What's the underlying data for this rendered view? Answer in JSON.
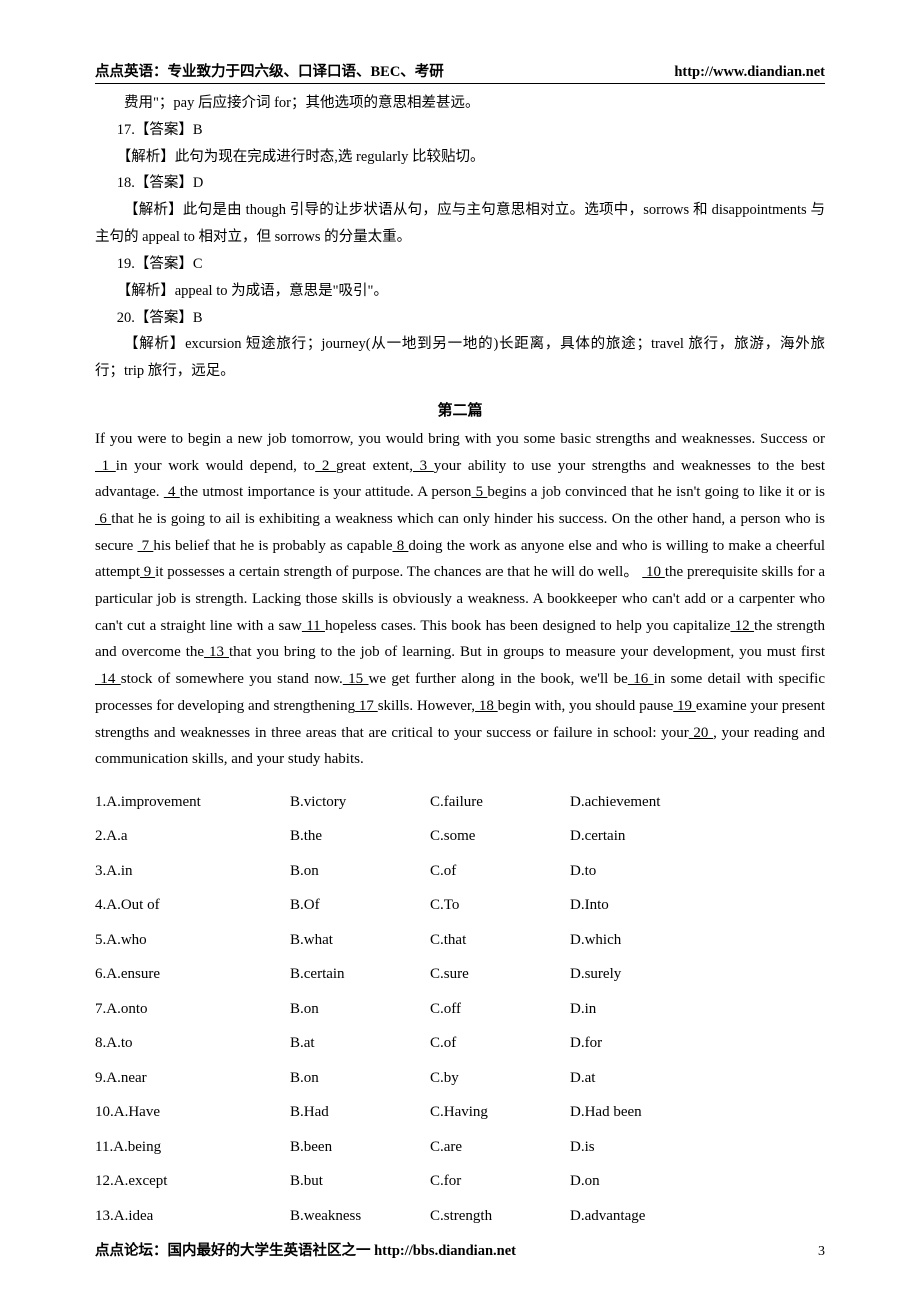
{
  "header": {
    "left": "点点英语：专业致力于四六级、口译口语、BEC、考研",
    "right": "http://www.diandian.net"
  },
  "top_block": {
    "line1": "费用\"；pay 后应接介词 for；其他选项的意思相差甚远。",
    "a17_ans": "17.【答案】B",
    "a17_exp": "【解析】此句为现在完成进行时态,选 regularly 比较贴切。",
    "a18_ans": "18.【答案】D",
    "a18_exp": "【解析】此句是由 though 引导的让步状语从句，应与主句意思相对立。选项中，sorrows 和 disappointments 与主句的 appeal to 相对立，但 sorrows 的分量太重。",
    "a19_ans": "19.【答案】C",
    "a19_exp": "【解析】appeal to 为成语，意思是\"吸引\"。",
    "a20_ans": "20.【答案】B",
    "a20_exp": "【解析】excursion 短途旅行；journey(从一地到另一地的)长距离，具体的旅途；travel 旅行，旅游，海外旅行；trip 旅行，远足。"
  },
  "section_title": "第二篇",
  "passage": {
    "pre1": "If you were to begin a new job tomorrow, you would bring with you some basic strengths and weaknesses. Success or",
    "b1": " 1 ",
    "p1": "in your work would depend, to",
    "b2": " 2 ",
    "p2": "great extent,",
    "b3": " 3 ",
    "p3": "your ability to use your strengths and weaknesses to the best advantage.",
    "b4": " 4 ",
    "p4": "the utmost importance is your attitude. A person",
    "b5": " 5 ",
    "p5": "begins a job convinced that he isn't going to like it or is",
    "b6": " 6 ",
    "p6": "that he is going to ail is exhibiting a weakness which can only hinder his success. On the other hand, a person who is secure",
    "b7": " 7 ",
    "p7": "his belief that he is probably as capable",
    "b8": " 8 ",
    "p8": "doing the work as anyone else and who is willing to make a cheerful attempt",
    "b9": " 9 ",
    "p9": "it possesses a certain strength of purpose. The chances are that he will do well。",
    "b10": " 10 ",
    "p10": "the prerequisite skills for a particular job is strength. Lacking those skills is obviously a weakness. A bookkeeper who can't add or a carpenter who can't cut a straight line with a saw",
    "b11": " 11 ",
    "p11": "hopeless cases. This book has been designed to help you capitalize",
    "b12": " 12 ",
    "p12": "the strength and overcome the",
    "b13": " 13 ",
    "p13": "that you bring to the job of learning. But in groups to measure your development, you must first",
    "b14": " 14 ",
    "p14": "stock of somewhere you stand now.",
    "b15": " 15 ",
    "p15": "we get further along in the book, we'll be",
    "b16": " 16 ",
    "p16": "in some detail with specific processes for developing and strengthening",
    "b17": " 17 ",
    "p17": "skills. However,",
    "b18": " 18 ",
    "p18": "begin with, you should pause",
    "b19": " 19 ",
    "p19": "examine your present strengths and weaknesses in three areas that are critical to your success or failure in school: your",
    "b20": " 20 ",
    "p20": ", your reading and communication skills, and your study habits."
  },
  "options": [
    {
      "n": "1",
      "a": "A.improvement",
      "b": "B.victory",
      "c": "C.failure",
      "d": "D.achievement"
    },
    {
      "n": "2",
      "a": "A.a",
      "b": "B.the",
      "c": "C.some",
      "d": "D.certain"
    },
    {
      "n": "3",
      "a": "A.in",
      "b": "B.on",
      "c": "C.of",
      "d": "D.to"
    },
    {
      "n": "4",
      "a": "A.Out of",
      "b": "B.Of",
      "c": "C.To",
      "d": "D.Into"
    },
    {
      "n": "5",
      "a": "A.who",
      "b": "B.what",
      "c": "C.that",
      "d": "D.which"
    },
    {
      "n": "6",
      "a": "A.ensure",
      "b": "B.certain",
      "c": "C.sure",
      "d": "D.surely"
    },
    {
      "n": "7",
      "a": "A.onto",
      "b": "B.on",
      "c": "C.off",
      "d": "D.in"
    },
    {
      "n": "8",
      "a": "A.to",
      "b": "B.at",
      "c": "C.of",
      "d": "D.for"
    },
    {
      "n": "9",
      "a": "A.near",
      "b": "B.on",
      "c": "C.by",
      "d": "D.at"
    },
    {
      "n": "10",
      "a": "A.Have",
      "b": "B.Had",
      "c": "C.Having",
      "d": "D.Had been"
    },
    {
      "n": "11",
      "a": "A.being",
      "b": "B.been",
      "c": "C.are",
      "d": "D.is"
    },
    {
      "n": "12",
      "a": "A.except",
      "b": "B.but",
      "c": "C.for",
      "d": "D.on"
    },
    {
      "n": "13",
      "a": "A.idea",
      "b": "B.weakness",
      "c": "C.strength",
      "d": "D.advantage"
    }
  ],
  "footer": {
    "text": "点点论坛：国内最好的大学生英语社区之一 http://bbs.diandian.net",
    "page_num": "3"
  }
}
